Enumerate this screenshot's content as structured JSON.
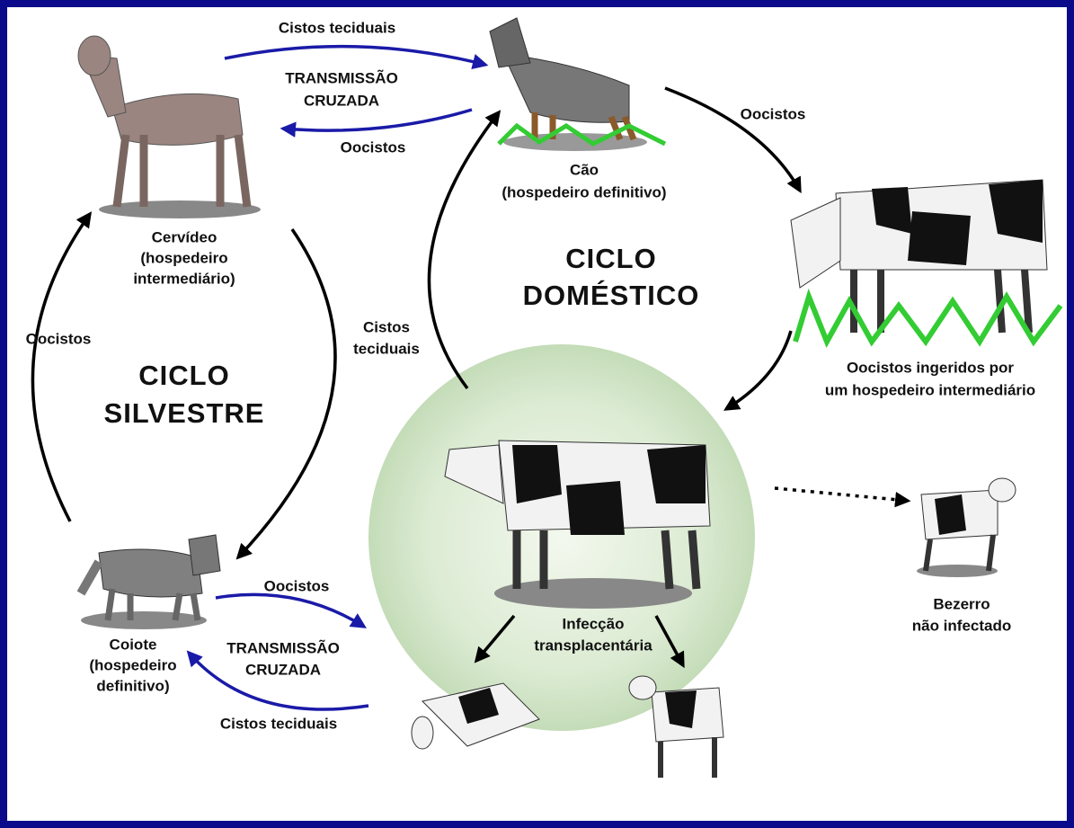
{
  "labels": {
    "dog_to_deer_top": [
      "Cistos teciduais"
    ],
    "cross_top": [
      "TRANSMISSÃO",
      "CRUZADA"
    ],
    "deer_to_dog": [
      "Oocistos"
    ],
    "dog": [
      "Cão",
      "(hospedeiro definitivo)"
    ],
    "dog_to_cow": [
      "Oocistos"
    ],
    "deer": [
      "Cervídeo",
      "(hospedeiro",
      "intermediário)"
    ],
    "domestic_cycle": [
      "CICLO",
      "DOMÉSTICO"
    ],
    "coyote_to_deer": [
      "Oocistos"
    ],
    "cow_to_dog": [
      "Cistos",
      "teciduais"
    ],
    "sylvatic_cycle": [
      "CICLO",
      "SILVESTRE"
    ],
    "ingested": [
      "Oocistos ingeridos por",
      "um hospedeiro intermediário"
    ],
    "coyote_to_cow": [
      "Oocistos"
    ],
    "transplacental": [
      "Infecção",
      "transplacentária"
    ],
    "calf": [
      "Bezerro",
      "não infectado"
    ],
    "coyote": [
      "Coiote",
      "(hospedeiro",
      "definitivo)"
    ],
    "cross_bottom": [
      "TRANSMISSÃO",
      "CRUZADA"
    ],
    "cow_to_coyote": [
      "Cistos teciduais"
    ]
  }
}
